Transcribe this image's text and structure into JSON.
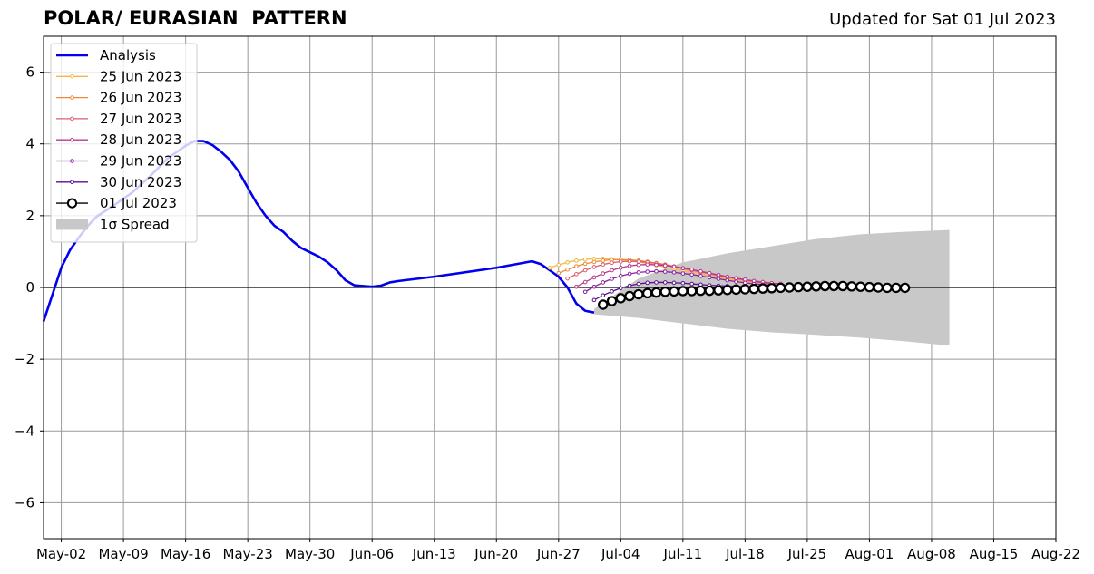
{
  "header": {
    "title": "POLAR/ EURASIAN  PATTERN",
    "updated": "Updated for Sat 01 Jul 2023"
  },
  "chart_data": {
    "type": "line",
    "title": "POLAR/ EURASIAN  PATTERN",
    "xlabel": "",
    "ylabel": "",
    "x_axis": {
      "start": "2023-04-30",
      "end": "2023-08-22",
      "tick_labels": [
        "May-02",
        "May-09",
        "May-16",
        "May-23",
        "May-30",
        "Jun-06",
        "Jun-13",
        "Jun-20",
        "Jun-27",
        "Jul-04",
        "Jul-11",
        "Jul-18",
        "Jul-25",
        "Aug-01",
        "Aug-08",
        "Aug-15",
        "Aug-22"
      ]
    },
    "y_axis": {
      "ylim": [
        -7,
        7
      ],
      "ticks": [
        6,
        4,
        2,
        0,
        -2,
        -4,
        -6
      ],
      "tick_labels": [
        "6",
        "4",
        "2",
        "0",
        "−2",
        "−4",
        "−6"
      ]
    },
    "grid": true,
    "zero_line": true,
    "legend": {
      "placement": "top-left",
      "entries": [
        "Analysis",
        "25 Jun 2023",
        "26 Jun 2023",
        "27 Jun 2023",
        "28 Jun 2023",
        "29 Jun 2023",
        "30 Jun 2023",
        "01 Jul 2023",
        "1σ Spread"
      ]
    },
    "colors": {
      "analysis": "#0000ee",
      "f25": "#f5b841",
      "f26": "#eb8a3c",
      "f27": "#dd5d6b",
      "f28": "#b8388e",
      "f29": "#8a1fa0",
      "f30": "#5a0f92",
      "f01": "#000000",
      "spread": "#c8c8c8"
    },
    "analysis": {
      "name": "Analysis",
      "x": [
        "2023-04-30",
        "2023-05-01",
        "2023-05-02",
        "2023-05-03",
        "2023-05-04",
        "2023-05-05",
        "2023-05-06",
        "2023-05-08",
        "2023-05-10",
        "2023-05-12",
        "2023-05-14",
        "2023-05-16",
        "2023-05-17",
        "2023-05-18",
        "2023-05-19",
        "2023-05-20",
        "2023-05-21",
        "2023-05-22",
        "2023-05-23",
        "2023-05-24",
        "2023-05-25",
        "2023-05-26",
        "2023-05-27",
        "2023-05-28",
        "2023-05-29",
        "2023-05-30",
        "2023-05-31",
        "2023-06-01",
        "2023-06-02",
        "2023-06-03",
        "2023-06-04",
        "2023-06-05",
        "2023-06-06",
        "2023-06-07",
        "2023-06-08",
        "2023-06-09",
        "2023-06-13",
        "2023-06-20",
        "2023-06-24",
        "2023-06-25",
        "2023-06-26",
        "2023-06-27",
        "2023-06-28",
        "2023-06-29",
        "2023-06-30",
        "2023-07-01"
      ],
      "y": [
        -0.95,
        -0.2,
        0.55,
        1.05,
        1.4,
        1.72,
        1.98,
        2.3,
        2.65,
        3.1,
        3.6,
        3.95,
        4.08,
        4.08,
        3.97,
        3.78,
        3.55,
        3.22,
        2.78,
        2.35,
        2.0,
        1.72,
        1.55,
        1.3,
        1.1,
        0.98,
        0.86,
        0.7,
        0.48,
        0.2,
        0.06,
        0.04,
        0.02,
        0.05,
        0.14,
        0.18,
        0.3,
        0.55,
        0.73,
        0.65,
        0.48,
        0.3,
        0.0,
        -0.45,
        -0.65,
        -0.7
      ]
    },
    "series": [
      {
        "name": "25 Jun 2023",
        "start": "2023-06-26",
        "values": [
          0.55,
          0.63,
          0.7,
          0.75,
          0.78,
          0.8,
          0.8,
          0.79,
          0.77,
          0.74,
          0.71,
          0.67,
          0.62,
          0.57,
          0.52,
          0.47,
          0.42,
          0.37,
          0.32,
          0.28,
          0.24,
          0.2,
          0.17,
          0.14,
          0.12,
          0.1
        ]
      },
      {
        "name": "26 Jun 2023",
        "start": "2023-06-27",
        "values": [
          0.4,
          0.5,
          0.59,
          0.66,
          0.71,
          0.75,
          0.77,
          0.78,
          0.77,
          0.75,
          0.72,
          0.68,
          0.64,
          0.59,
          0.54,
          0.49,
          0.44,
          0.39,
          0.34,
          0.29,
          0.25,
          0.21,
          0.18,
          0.15,
          0.12,
          0.1
        ]
      },
      {
        "name": "27 Jun 2023",
        "start": "2023-06-28",
        "values": [
          0.25,
          0.37,
          0.48,
          0.57,
          0.64,
          0.69,
          0.72,
          0.73,
          0.72,
          0.7,
          0.67,
          0.63,
          0.58,
          0.53,
          0.48,
          0.43,
          0.38,
          0.33,
          0.28,
          0.24,
          0.2,
          0.16,
          0.13,
          0.1,
          0.08
        ]
      },
      {
        "name": "28 Jun 2023",
        "start": "2023-06-29",
        "values": [
          0.02,
          0.15,
          0.28,
          0.39,
          0.48,
          0.55,
          0.6,
          0.63,
          0.64,
          0.63,
          0.61,
          0.58,
          0.54,
          0.5,
          0.45,
          0.4,
          0.35,
          0.3,
          0.26,
          0.22,
          0.18,
          0.15,
          0.12,
          0.1
        ]
      },
      {
        "name": "29 Jun 2023",
        "start": "2023-06-30",
        "values": [
          -0.12,
          0.02,
          0.14,
          0.24,
          0.32,
          0.38,
          0.42,
          0.44,
          0.45,
          0.44,
          0.42,
          0.39,
          0.36,
          0.32,
          0.28,
          0.24,
          0.2,
          0.16,
          0.13,
          0.1,
          0.08,
          0.06,
          0.05
        ]
      },
      {
        "name": "30 Jun 2023",
        "start": "2023-07-01",
        "values": [
          -0.35,
          -0.22,
          -0.11,
          -0.02,
          0.05,
          0.1,
          0.13,
          0.14,
          0.14,
          0.13,
          0.12,
          0.1,
          0.08,
          0.06,
          0.05,
          0.04,
          0.03,
          0.02,
          0.02,
          0.01,
          0.01,
          0.01
        ]
      },
      {
        "name": "01 Jul 2023",
        "start": "2023-07-02",
        "values": [
          -0.48,
          -0.38,
          -0.3,
          -0.24,
          -0.19,
          -0.16,
          -0.14,
          -0.12,
          -0.11,
          -0.1,
          -0.1,
          -0.09,
          -0.09,
          -0.08,
          -0.07,
          -0.06,
          -0.05,
          -0.04,
          -0.03,
          -0.02,
          -0.01,
          0.0,
          0.01,
          0.02,
          0.03,
          0.04,
          0.04,
          0.04,
          0.03,
          0.02,
          0.01,
          0.0,
          -0.01,
          -0.01,
          -0.01
        ]
      }
    ],
    "spread": {
      "name": "1σ Spread",
      "start": "2023-07-01",
      "step_days": 5,
      "upper": [
        -0.6,
        0.25,
        0.7,
        0.95,
        1.15,
        1.35,
        1.48,
        1.55,
        1.6
      ],
      "lower": [
        -0.75,
        -0.85,
        -1.0,
        -1.15,
        -1.25,
        -1.32,
        -1.4,
        -1.5,
        -1.62
      ]
    }
  }
}
